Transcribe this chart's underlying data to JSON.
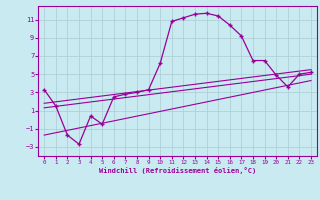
{
  "xlabel": "Windchill (Refroidissement éolien,°C)",
  "bg_color": "#c8eaf0",
  "grid_color": "#b0d0d8",
  "line_color": "#990099",
  "xlim": [
    -0.5,
    23.5
  ],
  "ylim": [
    -4,
    12.5
  ],
  "x_ticks": [
    0,
    1,
    2,
    3,
    4,
    5,
    6,
    7,
    8,
    9,
    10,
    11,
    12,
    13,
    14,
    15,
    16,
    17,
    18,
    19,
    20,
    21,
    22,
    23
  ],
  "y_ticks": [
    -3,
    -1,
    1,
    3,
    5,
    7,
    9,
    11
  ],
  "curve_x": [
    0,
    1,
    2,
    3,
    4,
    5,
    6,
    7,
    8,
    9,
    10,
    11,
    12,
    13,
    14,
    15,
    16,
    17,
    18,
    19,
    20,
    21,
    22,
    23
  ],
  "curve_y": [
    3.3,
    1.5,
    -1.7,
    -2.7,
    0.4,
    -0.5,
    2.5,
    2.8,
    3.0,
    3.3,
    6.2,
    10.8,
    11.2,
    11.6,
    11.7,
    11.4,
    10.4,
    9.2,
    6.5,
    6.5,
    4.9,
    3.6,
    5.0,
    5.2
  ],
  "line1_x": [
    0,
    23
  ],
  "line1_y": [
    1.8,
    5.5
  ],
  "line2_x": [
    0,
    23
  ],
  "line2_y": [
    1.3,
    5.0
  ],
  "line3_x": [
    0,
    23
  ],
  "line3_y": [
    -1.7,
    4.3
  ]
}
